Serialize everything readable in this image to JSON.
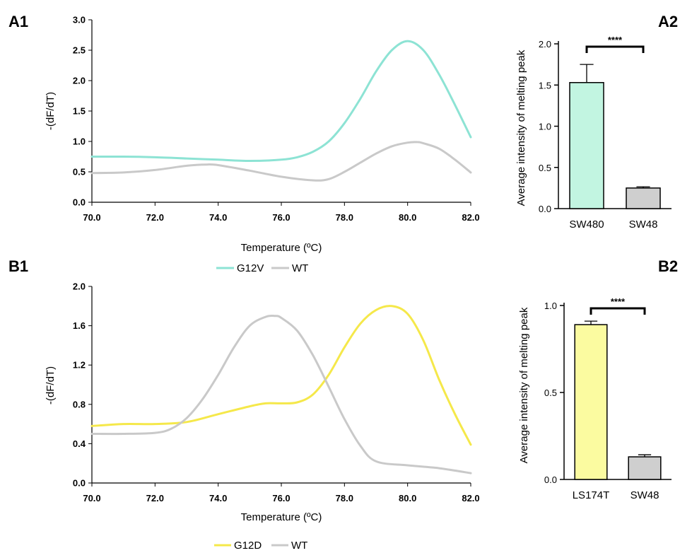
{
  "chart_data": [
    {
      "id": "A1",
      "type": "line",
      "panel_label": "A1",
      "xlabel": "Temperature (ºC)",
      "ylabel": "-(dF/dT)",
      "xlim": [
        70,
        82
      ],
      "ylim": [
        0,
        3
      ],
      "xticks": [
        "70.0",
        "72.0",
        "74.0",
        "76.0",
        "78.0",
        "80.0",
        "82.0"
      ],
      "xtick_values": [
        70,
        72,
        74,
        76,
        78,
        80,
        82
      ],
      "yticks": [
        "0.0",
        "0.5",
        "1.0",
        "1.5",
        "2.0",
        "2.5",
        "3.0"
      ],
      "ytick_values": [
        0,
        0.5,
        1,
        1.5,
        2,
        2.5,
        3
      ],
      "legend_position": "bottom",
      "series": [
        {
          "name": "G12V",
          "color": "#8de3d4",
          "x": [
            70,
            71,
            72,
            73,
            74,
            75,
            76,
            76.5,
            77,
            77.5,
            78,
            78.5,
            79,
            79.5,
            80,
            80.5,
            81,
            81.5,
            82
          ],
          "y": [
            0.75,
            0.75,
            0.74,
            0.72,
            0.7,
            0.68,
            0.7,
            0.74,
            0.83,
            1.0,
            1.3,
            1.7,
            2.15,
            2.5,
            2.65,
            2.5,
            2.1,
            1.6,
            1.07
          ]
        },
        {
          "name": "WT",
          "color": "#c9c9c9",
          "x": [
            70,
            71,
            72,
            73,
            73.6,
            74,
            75,
            76,
            77,
            77.5,
            78,
            78.5,
            79,
            79.5,
            80,
            80.3,
            80.5,
            81,
            81.5,
            82
          ],
          "y": [
            0.48,
            0.49,
            0.53,
            0.6,
            0.62,
            0.61,
            0.52,
            0.42,
            0.36,
            0.38,
            0.5,
            0.65,
            0.8,
            0.92,
            0.98,
            0.99,
            0.97,
            0.88,
            0.7,
            0.49
          ]
        }
      ]
    },
    {
      "id": "A2",
      "type": "bar",
      "panel_label": "A2",
      "ylabel": "Average intensity of melting peak",
      "categories": [
        "SW480",
        "SW48"
      ],
      "values": [
        1.53,
        0.25
      ],
      "errors": [
        0.22,
        0.015
      ],
      "colors": [
        "#c2f5e1",
        "#cfcfcf"
      ],
      "ylim": [
        0,
        2
      ],
      "yticks": [
        "0.0",
        "0.5",
        "1.0",
        "1.5",
        "2.0"
      ],
      "ytick_values": [
        0,
        0.5,
        1,
        1.5,
        2
      ],
      "significance": "****"
    },
    {
      "id": "B1",
      "type": "line",
      "panel_label": "B1",
      "xlabel": "Temperature (ºC)",
      "ylabel": "-(dF/dT)",
      "xlim": [
        70,
        82
      ],
      "ylim": [
        0,
        2
      ],
      "xticks": [
        "70.0",
        "72.0",
        "74.0",
        "76.0",
        "78.0",
        "80.0",
        "82.0"
      ],
      "xtick_values": [
        70,
        72,
        74,
        76,
        78,
        80,
        82
      ],
      "yticks": [
        "0.0",
        "0.4",
        "0.8",
        "1.2",
        "1.6",
        "2.0"
      ],
      "ytick_values": [
        0,
        0.4,
        0.8,
        1.2,
        1.6,
        2
      ],
      "legend_position": "bottom",
      "series": [
        {
          "name": "G12D",
          "color": "#f5e84a",
          "x": [
            70,
            71,
            72,
            73,
            74,
            75,
            75.5,
            76,
            76.5,
            77,
            77.5,
            78,
            78.5,
            79,
            79.5,
            80,
            80.5,
            81,
            81.5,
            82
          ],
          "y": [
            0.58,
            0.6,
            0.6,
            0.62,
            0.7,
            0.78,
            0.81,
            0.81,
            0.82,
            0.9,
            1.1,
            1.38,
            1.62,
            1.76,
            1.8,
            1.72,
            1.45,
            1.05,
            0.7,
            0.39
          ]
        },
        {
          "name": "WT",
          "color": "#c9c9c9",
          "x": [
            70,
            71,
            72,
            72.5,
            73,
            73.5,
            74,
            74.5,
            75,
            75.5,
            75.8,
            76,
            76.5,
            77,
            77.5,
            78,
            78.5,
            79,
            80,
            81,
            82
          ],
          "y": [
            0.5,
            0.5,
            0.51,
            0.55,
            0.66,
            0.85,
            1.1,
            1.38,
            1.6,
            1.69,
            1.7,
            1.68,
            1.55,
            1.3,
            0.98,
            0.65,
            0.38,
            0.22,
            0.18,
            0.15,
            0.1
          ]
        }
      ]
    },
    {
      "id": "B2",
      "type": "bar",
      "panel_label": "B2",
      "ylabel": "Average intensity of melting peak",
      "categories": [
        "LS174T",
        "SW48"
      ],
      "values": [
        0.89,
        0.13
      ],
      "errors": [
        0.02,
        0.012
      ],
      "colors": [
        "#fbfba0",
        "#cfcfcf"
      ],
      "ylim": [
        0,
        1
      ],
      "yticks": [
        "0.0",
        "0.5",
        "1.0"
      ],
      "ytick_values": [
        0,
        0.5,
        1
      ],
      "significance": "****"
    }
  ]
}
